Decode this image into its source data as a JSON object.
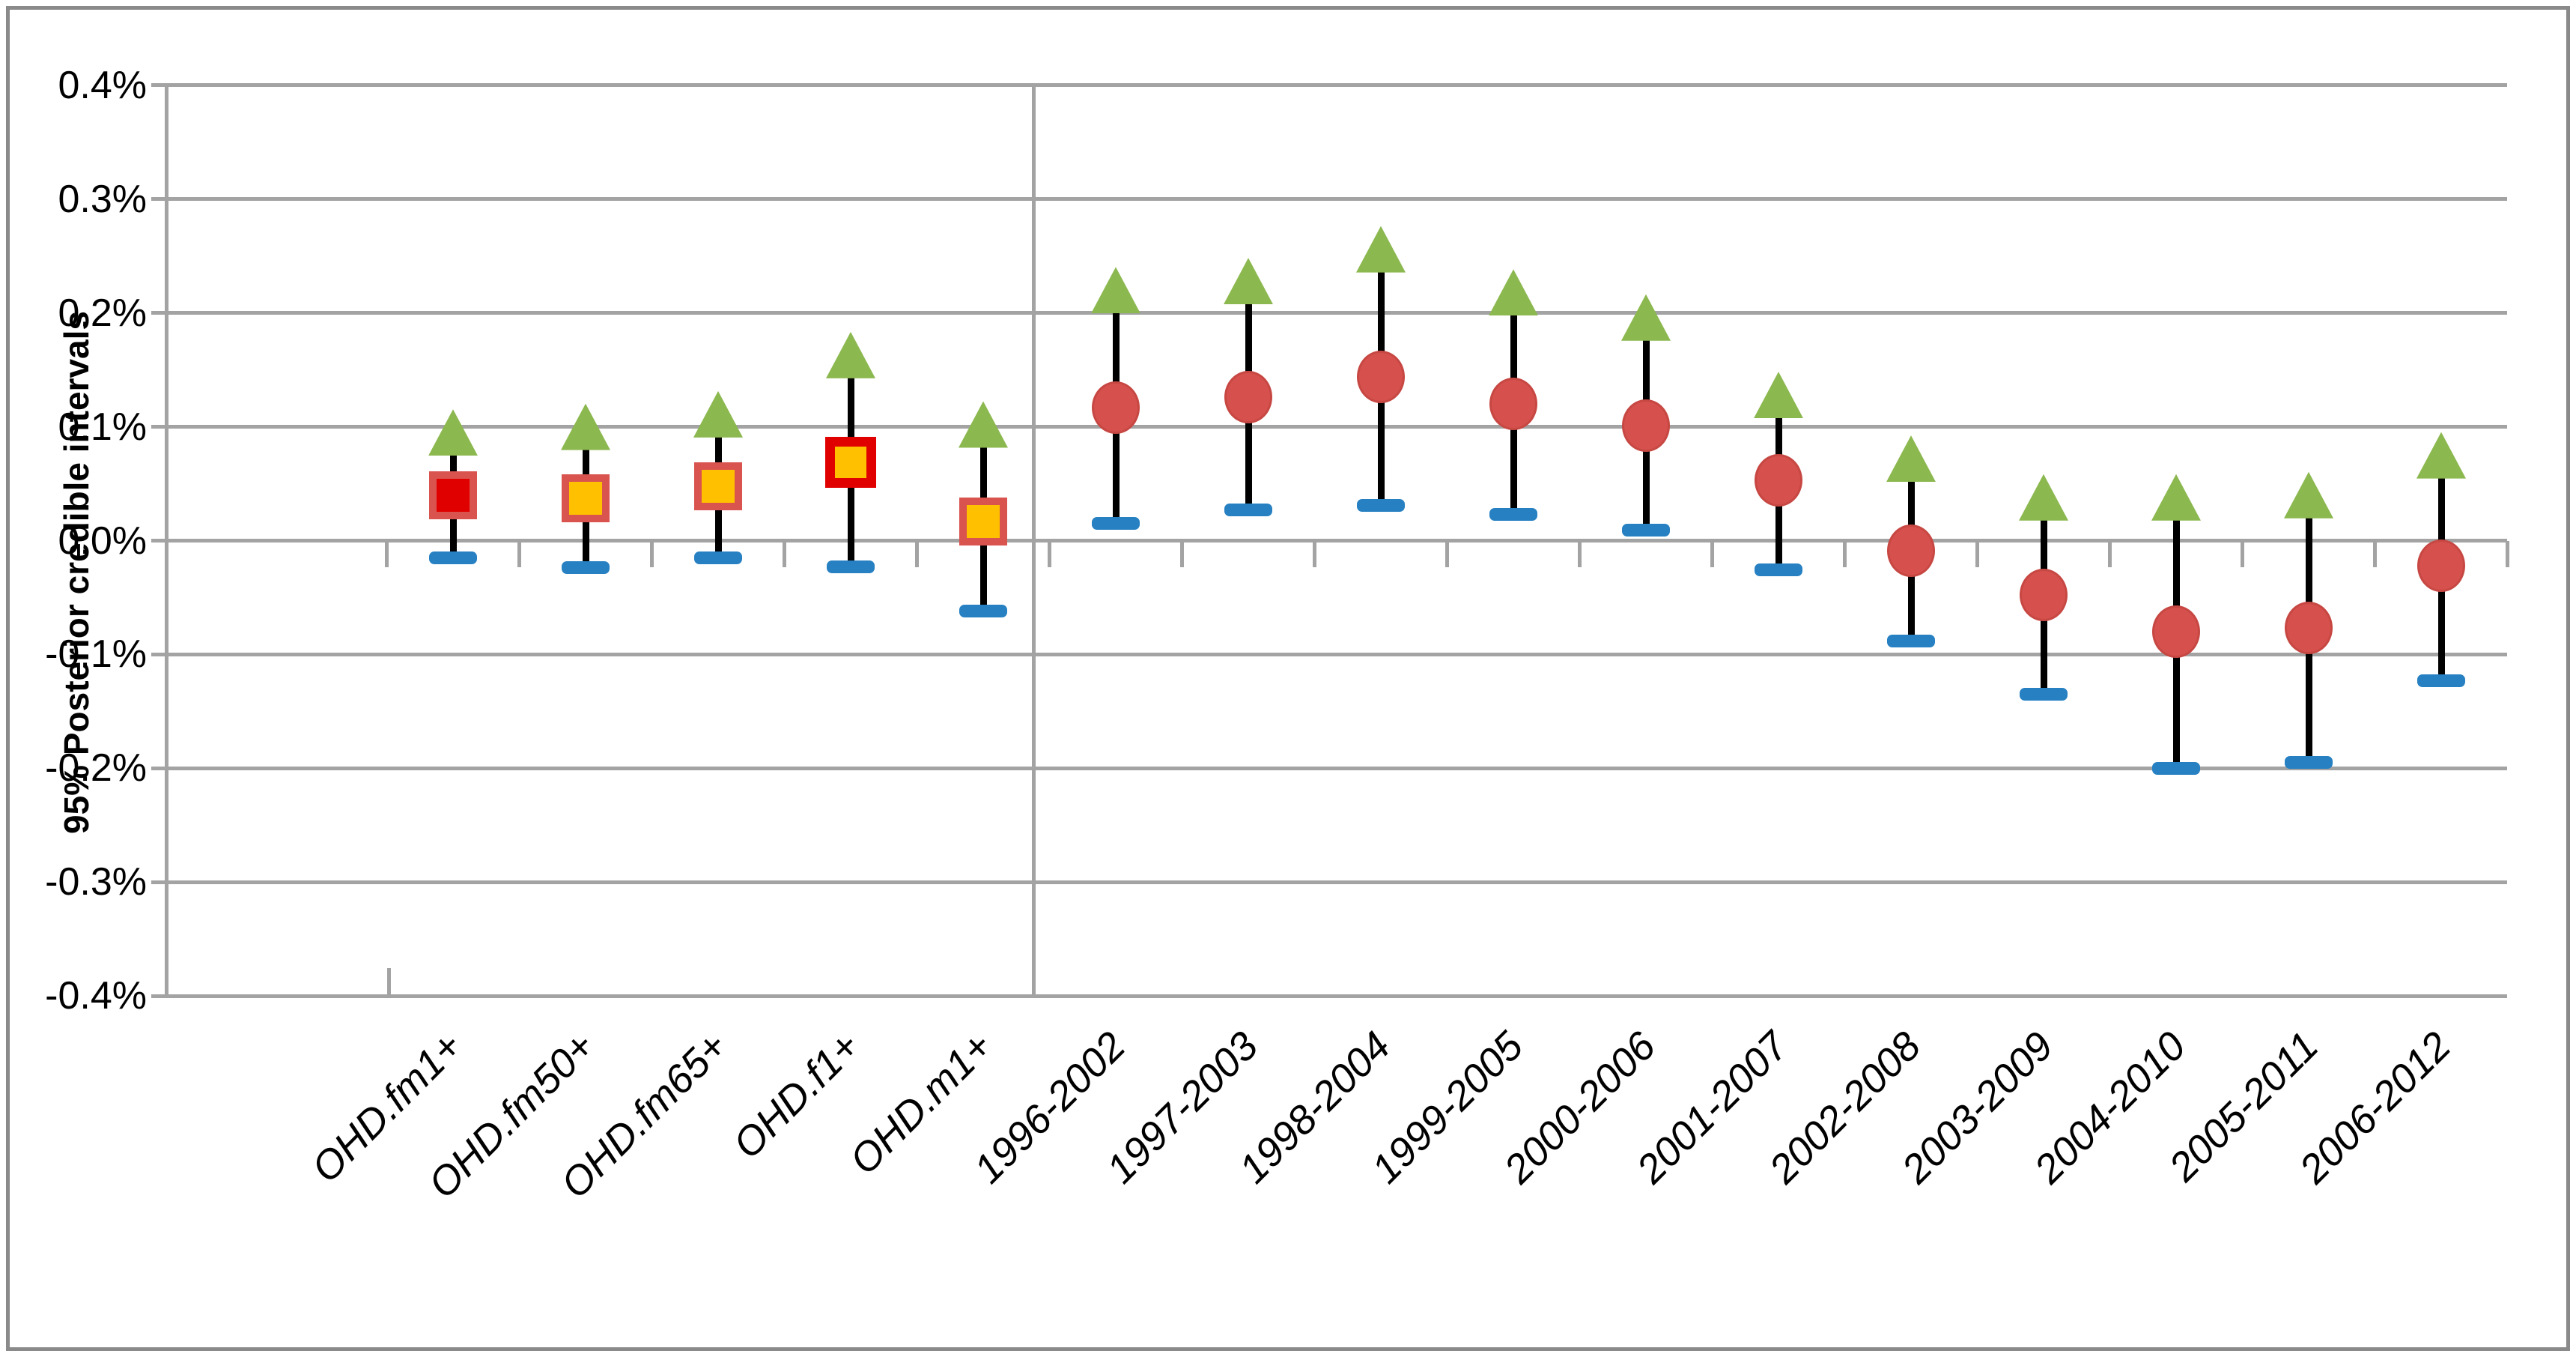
{
  "y_axis": {
    "title": "95% Posterior credible intervals",
    "tick_labels": [
      "0.4%",
      "0.3%",
      "0.2%",
      "0.1%",
      "0.0%",
      "-0.1%",
      "-0.2%",
      "-0.3%",
      "-0.4%"
    ]
  },
  "chart_data": {
    "type": "scatter",
    "title": "",
    "xlabel": "",
    "ylabel": "95% Posterior credible intervals",
    "ylim": [
      -0.4,
      0.4
    ],
    "y_unit": "percent",
    "grid": true,
    "legend_position": "none",
    "group_separator_after_index": 4,
    "series_semantics": {
      "upper": "95% credible interval upper bound (green triangle)",
      "center": "posterior point estimate (red/orange square for OHD models, red circle for year windows)",
      "lower": "95% credible interval lower bound (blue dash)"
    },
    "categories": [
      "OHD.fm1+",
      "OHD.fm50+",
      "OHD.fm65+",
      "OHD.f1+",
      "OHD.m1+",
      "1996-2002",
      "1997-2003",
      "1998-2004",
      "1999-2005",
      "2000-2006",
      "2001-2007",
      "2002-2008",
      "2003-2009",
      "2004-2010",
      "2005-2011",
      "2006-2012"
    ],
    "points": [
      {
        "label": "OHD.fm1+",
        "marker": "square",
        "upper": 0.095,
        "center": 0.04,
        "lower": -0.015,
        "fill": "#e00000",
        "border": "#d9534f",
        "border_width": 10
      },
      {
        "label": "OHD.fm50+",
        "marker": "square",
        "upper": 0.1,
        "center": 0.037,
        "lower": -0.024,
        "fill": "#ffc000",
        "border": "#d9534f",
        "border_width": 10
      },
      {
        "label": "OHD.fm65+",
        "marker": "square",
        "upper": 0.111,
        "center": 0.048,
        "lower": -0.015,
        "fill": "#ffc000",
        "border": "#d9534f",
        "border_width": 10
      },
      {
        "label": "OHD.f1+",
        "marker": "square",
        "upper": 0.163,
        "center": 0.069,
        "lower": -0.023,
        "fill": "#ffc000",
        "border": "#e00000",
        "border_width": 13
      },
      {
        "label": "OHD.m1+",
        "marker": "square",
        "upper": 0.102,
        "center": 0.017,
        "lower": -0.062,
        "fill": "#ffc000",
        "border": "#d9534f",
        "border_width": 10
      },
      {
        "label": "1996-2002",
        "marker": "circle",
        "upper": 0.22,
        "center": 0.117,
        "lower": 0.015
      },
      {
        "label": "1997-2003",
        "marker": "circle",
        "upper": 0.228,
        "center": 0.126,
        "lower": 0.027
      },
      {
        "label": "1998-2004",
        "marker": "circle",
        "upper": 0.256,
        "center": 0.144,
        "lower": 0.031
      },
      {
        "label": "1999-2005",
        "marker": "circle",
        "upper": 0.218,
        "center": 0.12,
        "lower": 0.023
      },
      {
        "label": "2000-2006",
        "marker": "circle",
        "upper": 0.196,
        "center": 0.101,
        "lower": 0.009
      },
      {
        "label": "2001-2007",
        "marker": "circle",
        "upper": 0.128,
        "center": 0.053,
        "lower": -0.026
      },
      {
        "label": "2002-2008",
        "marker": "circle",
        "upper": 0.072,
        "center": -0.009,
        "lower": -0.088
      },
      {
        "label": "2003-2009",
        "marker": "circle",
        "upper": 0.038,
        "center": -0.048,
        "lower": -0.135
      },
      {
        "label": "2004-2010",
        "marker": "circle",
        "upper": 0.038,
        "center": -0.08,
        "lower": -0.2
      },
      {
        "label": "2005-2011",
        "marker": "circle",
        "upper": 0.04,
        "center": -0.077,
        "lower": -0.195
      },
      {
        "label": "2006-2012",
        "marker": "circle",
        "upper": 0.075,
        "center": -0.022,
        "lower": -0.123
      }
    ],
    "colors": {
      "triangle_green": "#8cb850",
      "circle_fill": "#d6514d",
      "circle_border": "#c74743",
      "dash_blue": "#2680c2",
      "stem_black": "#000000",
      "gridline_gray": "#a3a3a3",
      "frame_border_gray": "#8a8a8a",
      "square_orange": "#ffc000",
      "square_red": "#e00000",
      "soft_red_border": "#d9534f"
    }
  }
}
